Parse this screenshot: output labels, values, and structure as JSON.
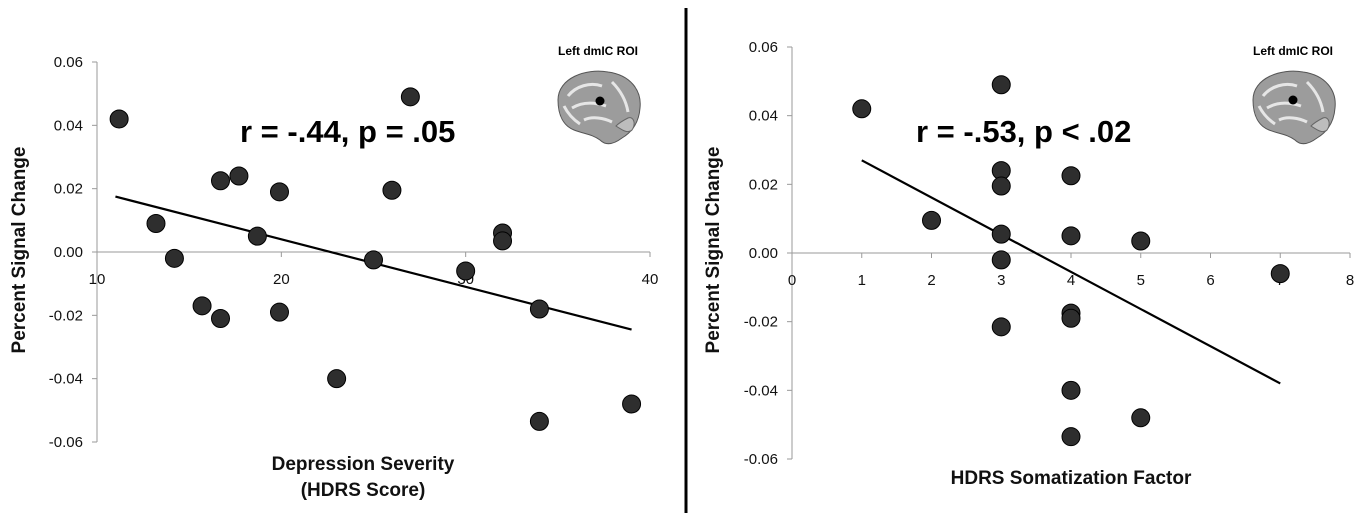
{
  "chart_data": [
    {
      "type": "scatter",
      "ylabel": "Percent Signal Change",
      "xlabel_lines": [
        "Depression Severity",
        "(HDRS Score)"
      ],
      "annotation": "r = -.44, p = .05",
      "roi_label": "Left dmIC ROI",
      "xlim": [
        10,
        40
      ],
      "ylim": [
        -0.06,
        0.06
      ],
      "xticks": [
        10,
        20,
        30,
        40
      ],
      "xtick_labels": [
        "10",
        "20",
        "30",
        "40"
      ],
      "yticks": [
        0.06,
        0.04,
        0.02,
        0.0,
        -0.02,
        -0.04,
        -0.06
      ],
      "ytick_labels": [
        "0.06",
        "0.04",
        "0.02",
        "0.00",
        "-0.02",
        "-0.04",
        "-0.06"
      ],
      "points": [
        {
          "x": 11.2,
          "y": 0.042
        },
        {
          "x": 13.2,
          "y": 0.009
        },
        {
          "x": 14.2,
          "y": -0.002
        },
        {
          "x": 15.7,
          "y": -0.017
        },
        {
          "x": 16.7,
          "y": 0.0225
        },
        {
          "x": 16.7,
          "y": -0.021
        },
        {
          "x": 17.7,
          "y": 0.024
        },
        {
          "x": 18.7,
          "y": 0.005
        },
        {
          "x": 19.9,
          "y": 0.019
        },
        {
          "x": 19.9,
          "y": -0.019
        },
        {
          "x": 23.0,
          "y": -0.04
        },
        {
          "x": 25.0,
          "y": -0.0025
        },
        {
          "x": 26.0,
          "y": 0.0195
        },
        {
          "x": 27.0,
          "y": 0.049
        },
        {
          "x": 30.0,
          "y": -0.006
        },
        {
          "x": 32.0,
          "y": 0.006
        },
        {
          "x": 32.0,
          "y": 0.0035
        },
        {
          "x": 34.0,
          "y": -0.018
        },
        {
          "x": 34.0,
          "y": -0.0535
        },
        {
          "x": 39.0,
          "y": -0.048
        }
      ],
      "trendline": {
        "x": [
          11.0,
          39.0
        ],
        "y": [
          0.0175,
          -0.0245
        ]
      }
    },
    {
      "type": "scatter",
      "ylabel": "Percent Signal Change",
      "xlabel_lines": [
        "HDRS Somatization Factor"
      ],
      "annotation": "r = -.53, p < .02",
      "roi_label": "Left dmIC ROI",
      "xlim": [
        0,
        8
      ],
      "ylim": [
        -0.06,
        0.06
      ],
      "xticks": [
        0,
        1,
        2,
        3,
        4,
        5,
        6,
        7,
        8
      ],
      "xtick_labels": [
        "0",
        "1",
        "2",
        "3",
        "4",
        "5",
        "6",
        "7",
        "8"
      ],
      "yticks": [
        0.06,
        0.04,
        0.02,
        0.0,
        -0.02,
        -0.04,
        -0.06
      ],
      "ytick_labels": [
        "0.06",
        "0.04",
        "0.02",
        "0.00",
        "-0.02",
        "-0.04",
        "-0.06"
      ],
      "points": [
        {
          "x": 1,
          "y": 0.042
        },
        {
          "x": 2,
          "y": 0.0095
        },
        {
          "x": 3,
          "y": 0.049
        },
        {
          "x": 3,
          "y": 0.024
        },
        {
          "x": 3,
          "y": 0.0195
        },
        {
          "x": 3,
          "y": 0.0055
        },
        {
          "x": 3,
          "y": -0.002
        },
        {
          "x": 3,
          "y": -0.0215
        },
        {
          "x": 4,
          "y": 0.0225
        },
        {
          "x": 4,
          "y": 0.005
        },
        {
          "x": 4,
          "y": -0.0175
        },
        {
          "x": 4,
          "y": -0.019
        },
        {
          "x": 4,
          "y": -0.04
        },
        {
          "x": 4,
          "y": -0.0535
        },
        {
          "x": 5,
          "y": 0.0035
        },
        {
          "x": 5,
          "y": -0.048
        },
        {
          "x": 7,
          "y": -0.006
        }
      ],
      "trendline": {
        "x": [
          1.0,
          7.0
        ],
        "y": [
          0.027,
          -0.038
        ]
      }
    }
  ]
}
